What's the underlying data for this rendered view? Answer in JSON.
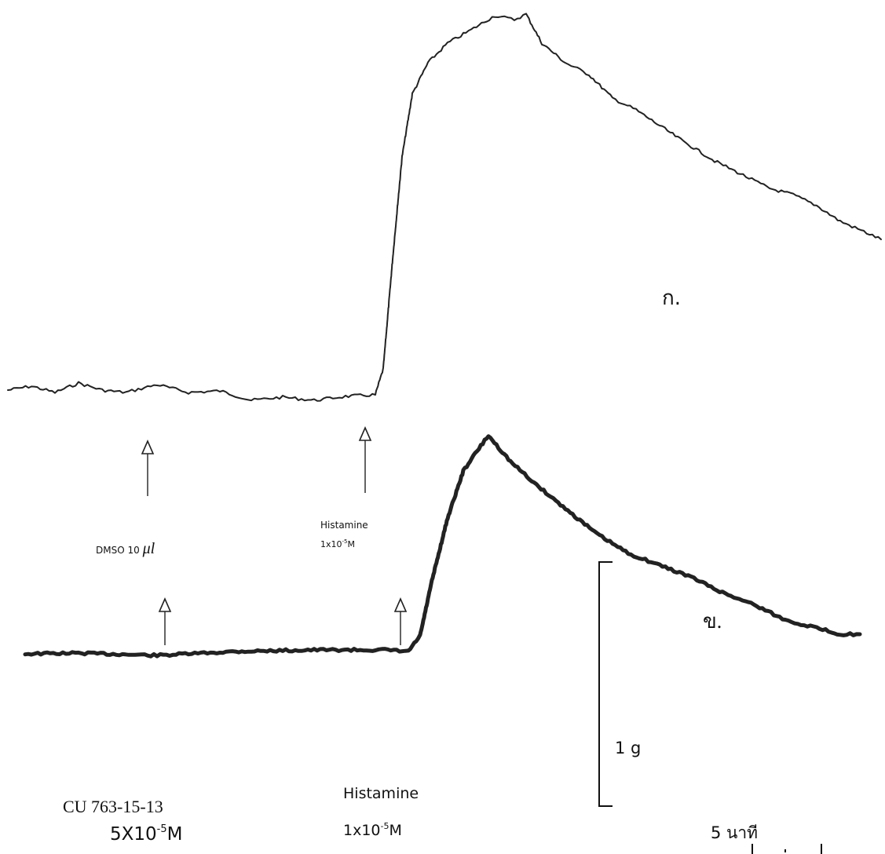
{
  "trace_a": {
    "label": "ก.",
    "arrows": [
      {
        "text": "DMSO 10",
        "unit": "μl"
      },
      {
        "text": "Histamine",
        "conc": {
          "base": "1x10",
          "exp": "-5",
          "unit": "M"
        }
      }
    ]
  },
  "trace_b": {
    "label": "ข.",
    "arrows": [
      {
        "text": "CU 763-15-13",
        "conc": {
          "base": "5X10",
          "exp": "-5",
          "unit": "M"
        }
      },
      {
        "text": "Histamine",
        "conc": {
          "base": "1x10",
          "exp": "-5",
          "unit": "M"
        }
      }
    ]
  },
  "scale": {
    "force": "1 g",
    "time": "5 นาที"
  }
}
